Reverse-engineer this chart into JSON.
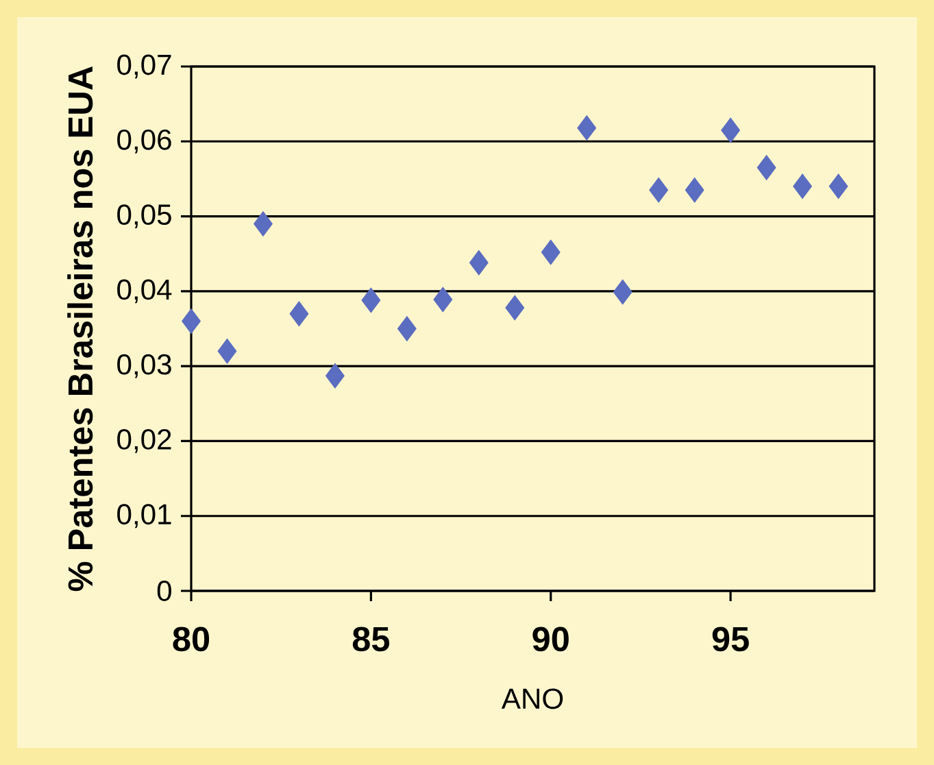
{
  "chart_data": {
    "type": "scatter",
    "xlabel": "ANO",
    "ylabel": "% Patentes Brasileiras nos EUA",
    "x": [
      80,
      81,
      82,
      83,
      84,
      85,
      86,
      87,
      88,
      89,
      90,
      91,
      92,
      93,
      94,
      95,
      96,
      97,
      98
    ],
    "series": [
      {
        "color": "#5b6dc0",
        "values": [
          0.036,
          0.032,
          0.049,
          0.037,
          0.0287,
          0.0388,
          0.035,
          0.0389,
          0.0438,
          0.0378,
          0.0452,
          0.0618,
          0.0399,
          0.0535,
          0.0535,
          0.0615,
          0.0565,
          0.054,
          0.054
        ]
      }
    ],
    "xlim": [
      80,
      99
    ],
    "ylim": [
      0,
      0.07
    ],
    "xticks": [
      80,
      85,
      90,
      95
    ],
    "yticks": [
      {
        "value": 0,
        "label": "0"
      },
      {
        "value": 0.01,
        "label": "0,01"
      },
      {
        "value": 0.02,
        "label": "0,02"
      },
      {
        "value": 0.03,
        "label": "0,03"
      },
      {
        "value": 0.04,
        "label": "0,04"
      },
      {
        "value": 0.05,
        "label": "0,05"
      },
      {
        "value": 0.06,
        "label": "0,06"
      },
      {
        "value": 0.07,
        "label": "0,07"
      }
    ],
    "grid": "y",
    "marker": "diamond"
  }
}
